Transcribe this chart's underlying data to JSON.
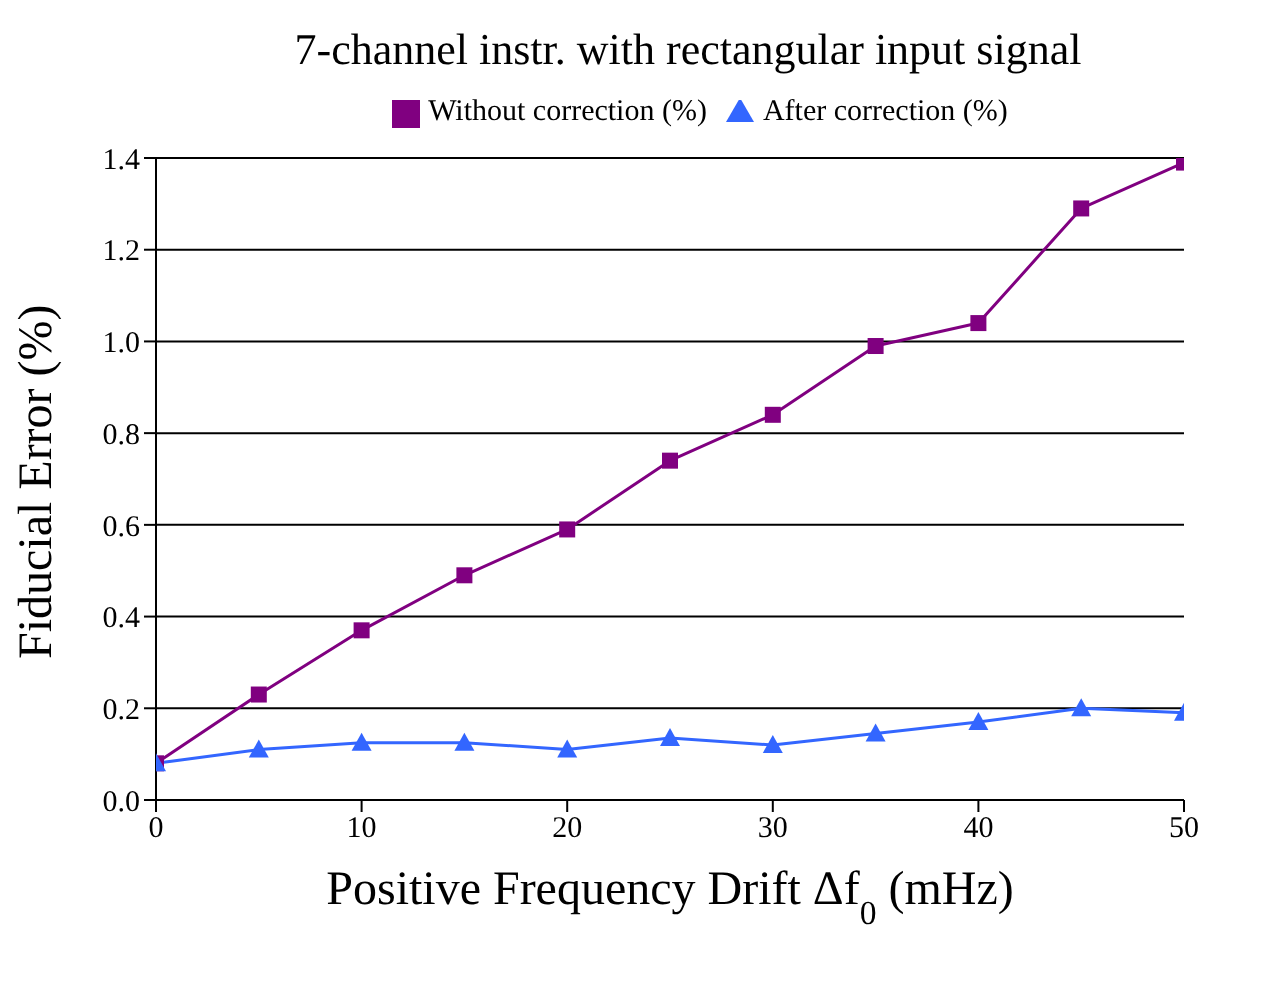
{
  "chart_data": {
    "type": "line",
    "title": "7-channel instr. with rectangular input signal",
    "xlabel": "Positive Frequency Drift Δf$_{0}$ (mHz)",
    "ylabel": "Fiducial Error (%)",
    "x": [
      0,
      5,
      10,
      15,
      20,
      25,
      30,
      35,
      40,
      45,
      50
    ],
    "series": [
      {
        "name": "Without correction (%)",
        "color": "#800080",
        "marker": "square",
        "values": [
          0.08,
          0.23,
          0.37,
          0.49,
          0.59,
          0.74,
          0.84,
          0.99,
          1.04,
          1.29,
          1.39
        ]
      },
      {
        "name": "After correction (%)",
        "color": "#3366ff",
        "marker": "triangle",
        "values": [
          0.08,
          0.11,
          0.125,
          0.125,
          0.11,
          0.135,
          0.12,
          0.145,
          0.17,
          0.2,
          0.19
        ]
      }
    ],
    "xlim": [
      0,
      50
    ],
    "xticks": [
      0,
      10,
      20,
      30,
      40,
      50
    ],
    "ylim": [
      0,
      1.4
    ],
    "yticks": [
      {
        "value": 0,
        "label": "0.0"
      },
      {
        "value": 0.2,
        "label": "0.2"
      },
      {
        "value": 0.4,
        "label": "0.4"
      },
      {
        "value": 0.6,
        "label": "0.6"
      },
      {
        "value": 0.8,
        "label": "0.8"
      },
      {
        "value": 1,
        "label": "1.0"
      },
      {
        "value": 1.2,
        "label": "1.2"
      },
      {
        "value": 1.4,
        "label": "1.4"
      }
    ],
    "grid": "y",
    "legend": "top",
    "line_style": "solid"
  }
}
